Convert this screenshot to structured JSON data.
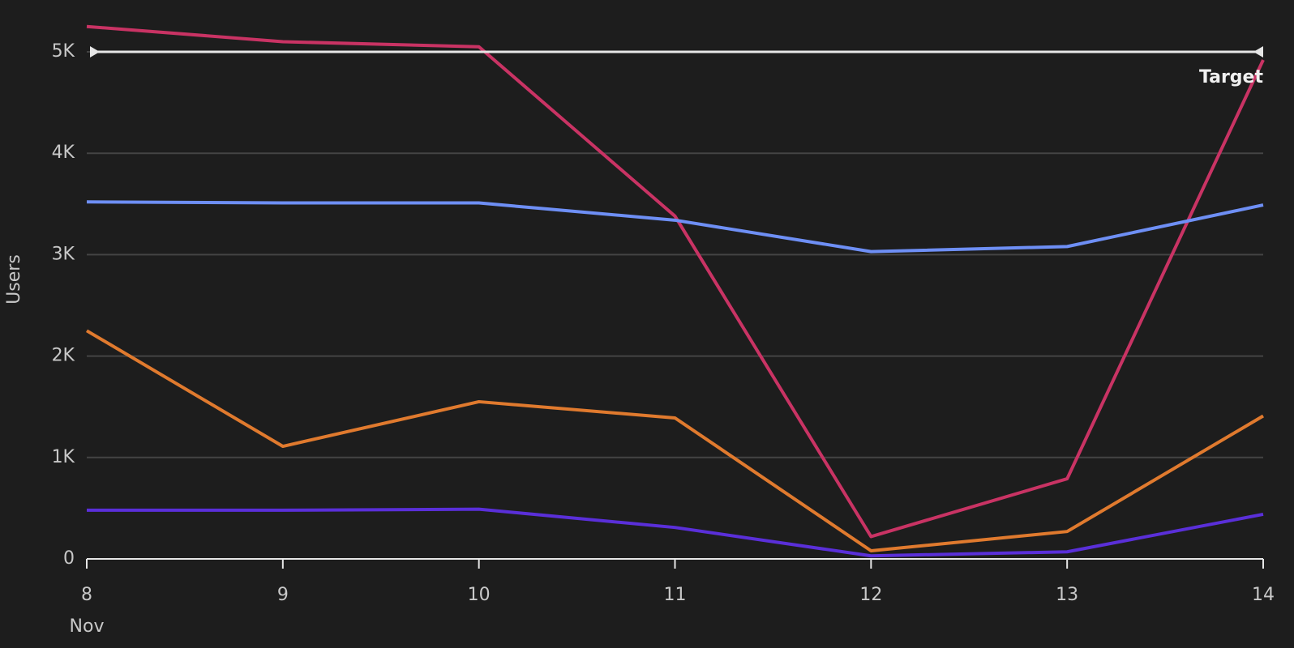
{
  "chart_data": {
    "type": "line",
    "y_label": "Users",
    "x_sublabel": "Nov",
    "categories": [
      "8",
      "9",
      "10",
      "11",
      "12",
      "13",
      "14"
    ],
    "series": [
      {
        "color": "#c93364",
        "values": [
          5250,
          5100,
          5050,
          3380,
          220,
          790,
          4920
        ]
      },
      {
        "color": "#6e8ff5",
        "values": [
          3520,
          3510,
          3510,
          3340,
          3030,
          3080,
          3490
        ]
      },
      {
        "color": "#e07a2e",
        "values": [
          2250,
          1110,
          1550,
          1390,
          80,
          270,
          1410
        ]
      },
      {
        "color": "#5a2fd9",
        "values": [
          480,
          480,
          490,
          310,
          30,
          70,
          440
        ]
      }
    ],
    "ylim": [
      0,
      5500
    ],
    "yticks": [
      0,
      {
        "value": 1000,
        "label": "1K"
      },
      {
        "value": 2000,
        "label": "2K"
      },
      {
        "value": 3000,
        "label": "3K"
      },
      {
        "value": 4000,
        "label": "4K"
      },
      {
        "value": 5000,
        "label": "5K"
      }
    ],
    "grid": true,
    "target": {
      "value": 5000,
      "label": "Target"
    }
  }
}
